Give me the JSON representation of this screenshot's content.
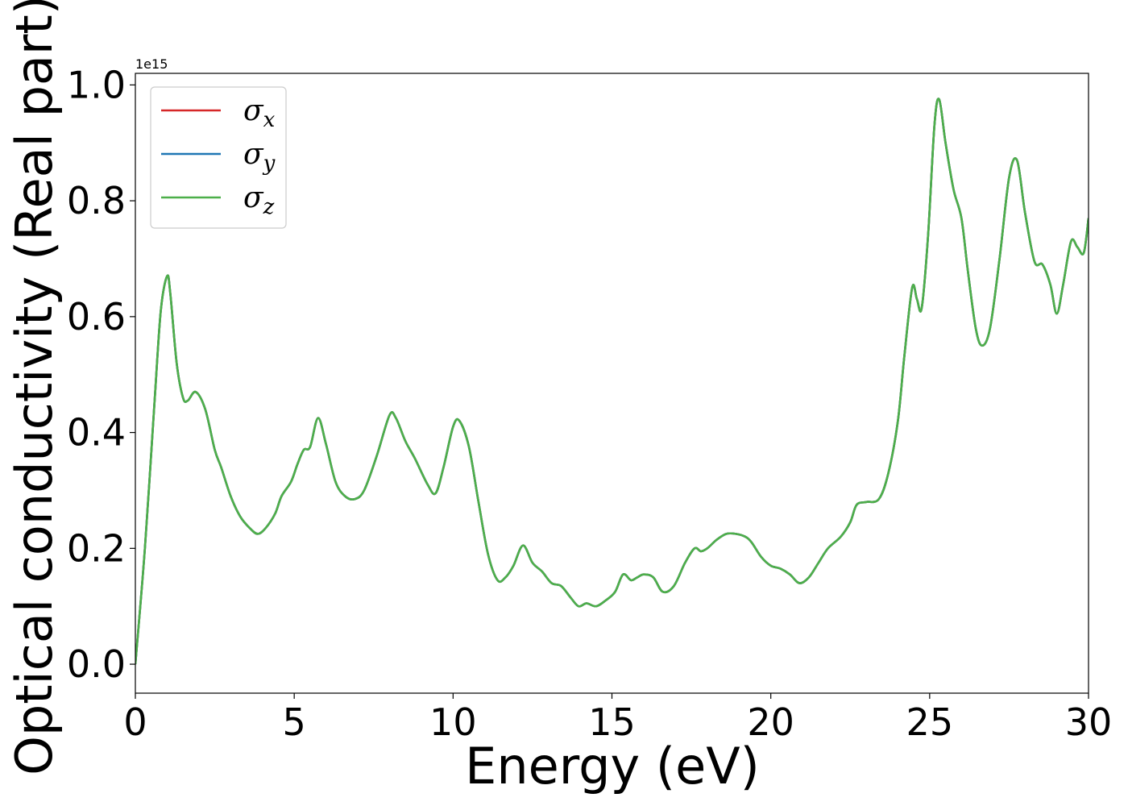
{
  "chart_data": {
    "type": "line",
    "xlabel": "Energy (eV)",
    "ylabel": "Optical conductivity (Real part)",
    "y_offset_text": "1e15",
    "xlim": [
      0,
      30
    ],
    "ylim": [
      -0.05,
      1.02
    ],
    "y_scale_factor": 1000000000000000.0,
    "x_ticks": [
      0,
      5,
      10,
      15,
      20,
      25,
      30
    ],
    "x_tick_labels": [
      "0",
      "5",
      "10",
      "15",
      "20",
      "25",
      "30"
    ],
    "y_ticks": [
      0.0,
      0.2,
      0.4,
      0.6,
      0.8,
      1.0
    ],
    "y_tick_labels": [
      "0.0",
      "0.2",
      "0.4",
      "0.6",
      "0.8",
      "1.0"
    ],
    "grid": false,
    "legend_placement": "upper-left",
    "x": [
      0,
      0.3,
      0.6,
      0.8,
      1.0,
      1.1,
      1.3,
      1.5,
      1.65,
      1.9,
      2.2,
      2.5,
      2.7,
      3.0,
      3.3,
      3.6,
      3.85,
      4.1,
      4.4,
      4.6,
      4.9,
      5.1,
      5.3,
      5.5,
      5.75,
      6.0,
      6.3,
      6.6,
      6.9,
      7.2,
      7.6,
      8.0,
      8.2,
      8.5,
      8.8,
      9.2,
      9.45,
      9.7,
      10.0,
      10.2,
      10.5,
      10.8,
      11.1,
      11.4,
      11.65,
      11.9,
      12.2,
      12.5,
      12.8,
      13.1,
      13.4,
      13.7,
      13.95,
      14.2,
      14.5,
      14.8,
      15.1,
      15.35,
      15.6,
      15.8,
      16.0,
      16.3,
      16.6,
      16.95,
      17.3,
      17.6,
      17.8,
      18.0,
      18.3,
      18.6,
      18.9,
      19.2,
      19.4,
      19.7,
      20.0,
      20.3,
      20.6,
      20.9,
      21.2,
      21.5,
      21.8,
      22.2,
      22.5,
      22.7,
      23.0,
      23.4,
      23.7,
      24.0,
      24.2,
      24.45,
      24.6,
      24.75,
      24.95,
      25.15,
      25.3,
      25.5,
      25.75,
      26.0,
      26.2,
      26.45,
      26.65,
      26.9,
      27.2,
      27.5,
      27.75,
      28.0,
      28.3,
      28.55,
      28.8,
      29.0,
      29.2,
      29.45,
      29.65,
      29.85,
      30.0
    ],
    "series": [
      {
        "name": "σx",
        "color": "#d62728",
        "values": [
          0.0,
          0.2,
          0.45,
          0.61,
          0.67,
          0.64,
          0.52,
          0.46,
          0.455,
          0.47,
          0.44,
          0.37,
          0.34,
          0.29,
          0.255,
          0.235,
          0.225,
          0.235,
          0.26,
          0.29,
          0.315,
          0.345,
          0.37,
          0.375,
          0.425,
          0.38,
          0.315,
          0.29,
          0.285,
          0.3,
          0.36,
          0.43,
          0.425,
          0.385,
          0.355,
          0.31,
          0.295,
          0.34,
          0.41,
          0.42,
          0.375,
          0.28,
          0.19,
          0.145,
          0.15,
          0.17,
          0.205,
          0.175,
          0.16,
          0.14,
          0.135,
          0.115,
          0.1,
          0.105,
          0.1,
          0.11,
          0.125,
          0.155,
          0.145,
          0.15,
          0.155,
          0.15,
          0.125,
          0.135,
          0.175,
          0.2,
          0.195,
          0.2,
          0.215,
          0.225,
          0.225,
          0.22,
          0.21,
          0.185,
          0.17,
          0.165,
          0.155,
          0.14,
          0.15,
          0.175,
          0.2,
          0.22,
          0.245,
          0.275,
          0.28,
          0.285,
          0.33,
          0.42,
          0.53,
          0.65,
          0.63,
          0.615,
          0.74,
          0.93,
          0.975,
          0.9,
          0.82,
          0.77,
          0.68,
          0.58,
          0.55,
          0.58,
          0.7,
          0.84,
          0.87,
          0.78,
          0.695,
          0.69,
          0.655,
          0.605,
          0.655,
          0.73,
          0.72,
          0.71,
          0.77
        ]
      },
      {
        "name": "σy",
        "color": "#1f77b4",
        "values": [
          0.0,
          0.2,
          0.45,
          0.61,
          0.67,
          0.64,
          0.52,
          0.46,
          0.455,
          0.47,
          0.44,
          0.37,
          0.34,
          0.29,
          0.255,
          0.235,
          0.225,
          0.235,
          0.26,
          0.29,
          0.315,
          0.345,
          0.37,
          0.375,
          0.425,
          0.38,
          0.315,
          0.29,
          0.285,
          0.3,
          0.36,
          0.43,
          0.425,
          0.385,
          0.355,
          0.31,
          0.295,
          0.34,
          0.41,
          0.42,
          0.375,
          0.28,
          0.19,
          0.145,
          0.15,
          0.17,
          0.205,
          0.175,
          0.16,
          0.14,
          0.135,
          0.115,
          0.1,
          0.105,
          0.1,
          0.11,
          0.125,
          0.155,
          0.145,
          0.15,
          0.155,
          0.15,
          0.125,
          0.135,
          0.175,
          0.2,
          0.195,
          0.2,
          0.215,
          0.225,
          0.225,
          0.22,
          0.21,
          0.185,
          0.17,
          0.165,
          0.155,
          0.14,
          0.15,
          0.175,
          0.2,
          0.22,
          0.245,
          0.275,
          0.28,
          0.285,
          0.33,
          0.42,
          0.53,
          0.65,
          0.63,
          0.615,
          0.74,
          0.93,
          0.975,
          0.9,
          0.82,
          0.77,
          0.68,
          0.58,
          0.55,
          0.58,
          0.7,
          0.84,
          0.87,
          0.78,
          0.695,
          0.69,
          0.655,
          0.605,
          0.655,
          0.73,
          0.72,
          0.71,
          0.77
        ]
      },
      {
        "name": "σz",
        "color": "#4daf4a",
        "values": [
          0.0,
          0.2,
          0.45,
          0.61,
          0.67,
          0.64,
          0.52,
          0.46,
          0.455,
          0.47,
          0.44,
          0.37,
          0.34,
          0.29,
          0.255,
          0.235,
          0.225,
          0.235,
          0.26,
          0.29,
          0.315,
          0.345,
          0.37,
          0.375,
          0.425,
          0.38,
          0.315,
          0.29,
          0.285,
          0.3,
          0.36,
          0.43,
          0.425,
          0.385,
          0.355,
          0.31,
          0.295,
          0.34,
          0.41,
          0.42,
          0.375,
          0.28,
          0.19,
          0.145,
          0.15,
          0.17,
          0.205,
          0.175,
          0.16,
          0.14,
          0.135,
          0.115,
          0.1,
          0.105,
          0.1,
          0.11,
          0.125,
          0.155,
          0.145,
          0.15,
          0.155,
          0.15,
          0.125,
          0.135,
          0.175,
          0.2,
          0.195,
          0.2,
          0.215,
          0.225,
          0.225,
          0.22,
          0.21,
          0.185,
          0.17,
          0.165,
          0.155,
          0.14,
          0.15,
          0.175,
          0.2,
          0.22,
          0.245,
          0.275,
          0.28,
          0.285,
          0.33,
          0.42,
          0.53,
          0.65,
          0.63,
          0.615,
          0.74,
          0.93,
          0.975,
          0.9,
          0.82,
          0.77,
          0.68,
          0.58,
          0.55,
          0.58,
          0.7,
          0.84,
          0.87,
          0.78,
          0.695,
          0.69,
          0.655,
          0.605,
          0.655,
          0.73,
          0.72,
          0.71,
          0.77
        ]
      }
    ],
    "legend": [
      {
        "symbol": "σ",
        "sub": "x",
        "color": "#d62728"
      },
      {
        "symbol": "σ",
        "sub": "y",
        "color": "#1f77b4"
      },
      {
        "symbol": "σ",
        "sub": "z",
        "color": "#4daf4a"
      }
    ]
  }
}
